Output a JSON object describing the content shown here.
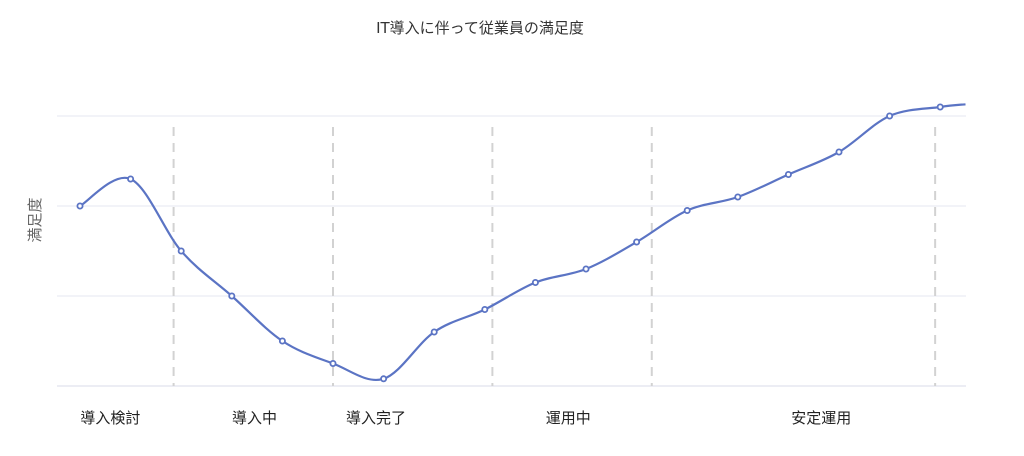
{
  "chart_data": {
    "type": "line",
    "title": "IT導入に伴って従業員の満足度",
    "xlabel": "",
    "ylabel": "満足度",
    "grid": true,
    "ylim": [
      0,
      3
    ],
    "phases": [
      {
        "label": "導入検討",
        "start": 0,
        "end": 2
      },
      {
        "label": "導入中",
        "start": 2,
        "end": 5
      },
      {
        "label": "導入完了",
        "start": 5,
        "end": 8
      },
      {
        "label": "運用中",
        "start": 8,
        "end": 11
      },
      {
        "label": "安定運用",
        "start": 11,
        "end": 17.5
      }
    ],
    "series": [
      {
        "color": "#5b74c4",
        "values": [
          {
            "x": 0,
            "y": 2.0
          },
          {
            "x": 1,
            "y": 2.3
          },
          {
            "x": 2,
            "y": 1.5
          },
          {
            "x": 3,
            "y": 1.0
          },
          {
            "x": 4,
            "y": 0.5
          },
          {
            "x": 5,
            "y": 0.25
          },
          {
            "x": 6,
            "y": 0.08
          },
          {
            "x": 7,
            "y": 0.6
          },
          {
            "x": 8,
            "y": 0.85
          },
          {
            "x": 9,
            "y": 1.15
          },
          {
            "x": 10,
            "y": 1.3
          },
          {
            "x": 11,
            "y": 1.6
          },
          {
            "x": 12,
            "y": 1.95
          },
          {
            "x": 13,
            "y": 2.1
          },
          {
            "x": 14,
            "y": 2.35
          },
          {
            "x": 15,
            "y": 2.6
          },
          {
            "x": 16,
            "y": 3.0
          },
          {
            "x": 17,
            "y": 3.1
          }
        ],
        "extends_to_x": 17.5,
        "end_y": 3.13
      }
    ]
  }
}
